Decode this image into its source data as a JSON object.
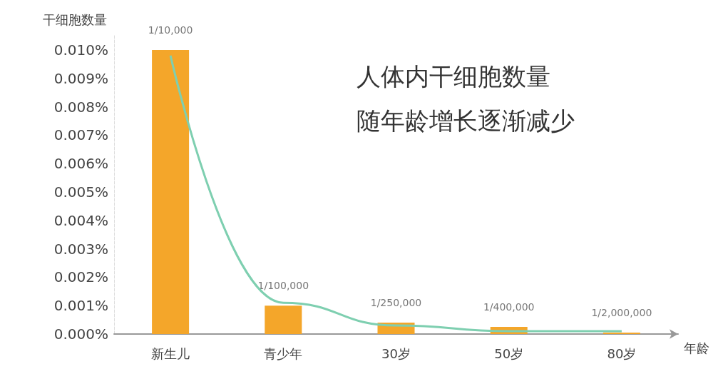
{
  "chart_data": {
    "type": "bar",
    "ylabel": "干细胞数量",
    "xlabel": "年龄",
    "annotations": [
      "人体内干细胞数量",
      "随年龄增长逐渐减少"
    ],
    "categories": [
      "新生儿",
      "青少年",
      "30岁",
      "50岁",
      "80岁"
    ],
    "series": [
      {
        "color": "#f4a62a",
        "values": [
          0.01,
          0.001,
          0.0004,
          0.00025,
          5e-05
        ],
        "value_labels": [
          "1/10,000",
          "1/100,000",
          "1/250,000",
          "1/400,000",
          "1/2,000,000"
        ]
      },
      {
        "type": "line",
        "color": "#7ecfb0",
        "values": [
          0.0098,
          0.0011,
          0.0003,
          0.0001,
          0.0001
        ]
      }
    ],
    "ylim": [
      0,
      0.0105
    ],
    "yticks": [
      {
        "value": 0,
        "label": "0.000%"
      },
      {
        "value": 0.001,
        "label": "0.001%"
      },
      {
        "value": 0.002,
        "label": "0.002%"
      },
      {
        "value": 0.003,
        "label": "0.003%"
      },
      {
        "value": 0.004,
        "label": "0.004%"
      },
      {
        "value": 0.005,
        "label": "0.005%"
      },
      {
        "value": 0.006,
        "label": "0.006%"
      },
      {
        "value": 0.007,
        "label": "0.007%"
      },
      {
        "value": 0.008,
        "label": "0.008%"
      },
      {
        "value": 0.009,
        "label": "0.009%"
      },
      {
        "value": 0.01,
        "label": "0.010%"
      }
    ],
    "grid": false,
    "marker": "none"
  }
}
